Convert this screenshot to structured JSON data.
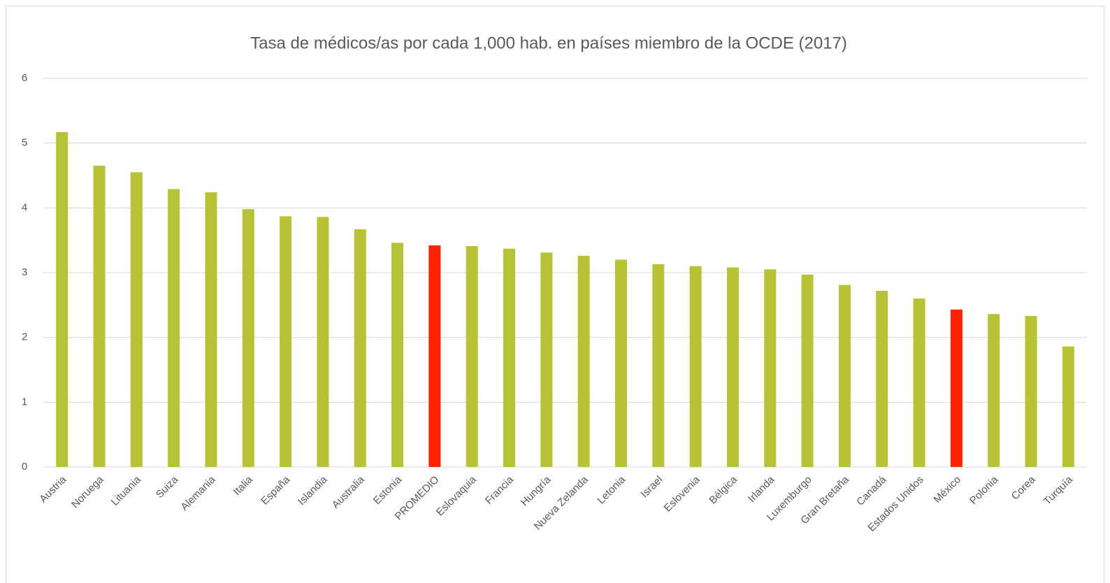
{
  "chart_data": {
    "type": "bar",
    "title": "Tasa de médicos/as por cada 1,000 hab. en países miembro de la OCDE (2017)",
    "categories": [
      "Austria",
      "Noruega",
      "Lituania",
      "Suiza",
      "Alemania",
      "Italia",
      "España",
      "Islandia",
      "Australia",
      "Estonia",
      "PROMEDIO",
      "Eslovaquia",
      "Francia",
      "Hungría",
      "Nueva Zelanda",
      "Letonia",
      "Israel",
      "Eslovenia",
      "Bélgica",
      "Irlanda",
      "Luxemburgo",
      "Gran Bretaña",
      "Canadá",
      "Estados Unidos",
      "México",
      "Polonia",
      "Corea",
      "Turquía"
    ],
    "values": [
      5.17,
      4.65,
      4.55,
      4.29,
      4.24,
      3.98,
      3.87,
      3.86,
      3.67,
      3.46,
      3.42,
      3.41,
      3.37,
      3.31,
      3.26,
      3.2,
      3.13,
      3.1,
      3.08,
      3.05,
      2.97,
      2.81,
      2.72,
      2.6,
      2.43,
      2.36,
      2.33,
      1.86
    ],
    "colors": [
      "#b5c334",
      "#b5c334",
      "#b5c334",
      "#b5c334",
      "#b5c334",
      "#b5c334",
      "#b5c334",
      "#b5c334",
      "#b5c334",
      "#b5c334",
      "#ff2200",
      "#b5c334",
      "#b5c334",
      "#b5c334",
      "#b5c334",
      "#b5c334",
      "#b5c334",
      "#b5c334",
      "#b5c334",
      "#b5c334",
      "#b5c334",
      "#b5c334",
      "#b5c334",
      "#b5c334",
      "#ff2200",
      "#b5c334",
      "#b5c334",
      "#b5c334"
    ],
    "ylim": [
      0,
      6
    ],
    "yticks": [
      0,
      1,
      2,
      3,
      4,
      5,
      6
    ],
    "grid": true
  }
}
